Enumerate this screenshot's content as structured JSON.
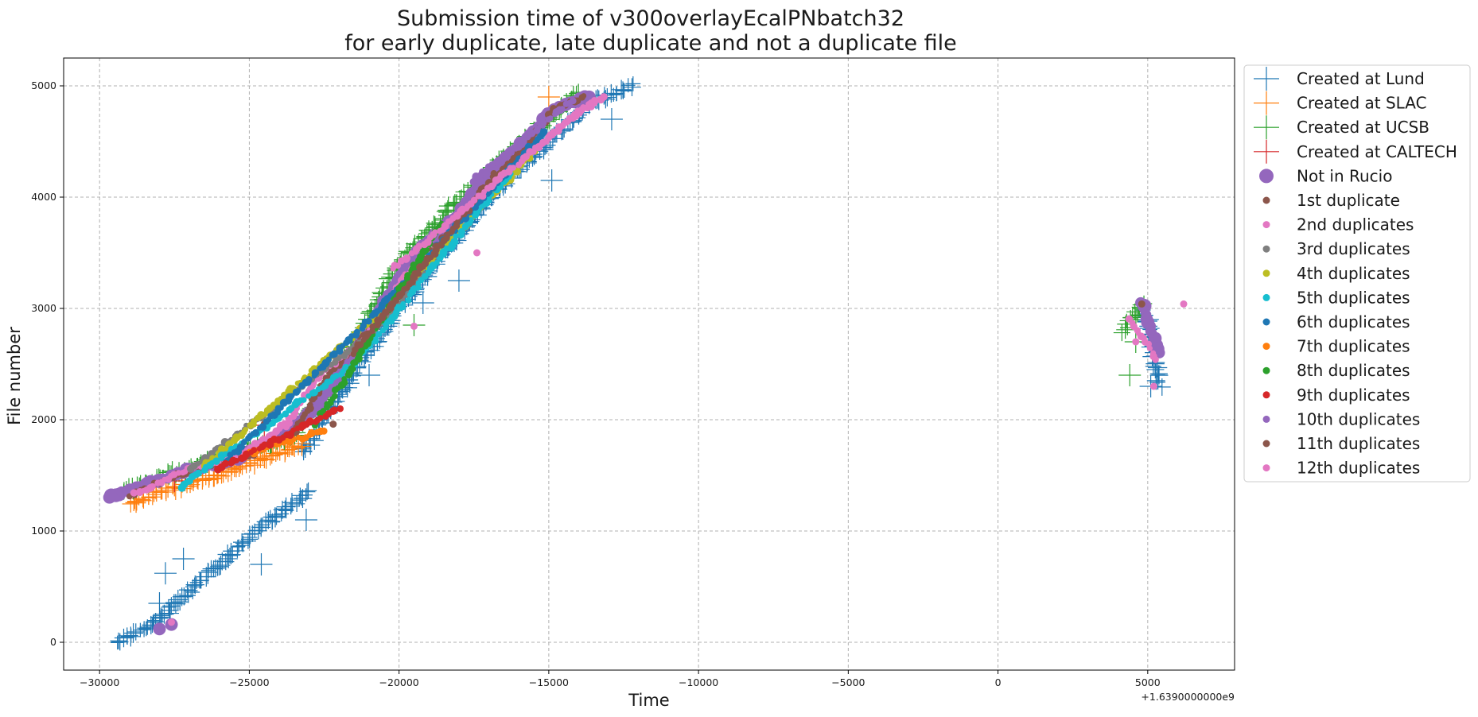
{
  "chart_data": {
    "type": "scatter",
    "title": "Submission time of v300overlayEcalPNbatch32",
    "subtitle": "for early duplicate, late duplicate and not a duplicate file",
    "xlabel": "Time",
    "ylabel": "File number",
    "x_offset_label": "+1.6390000000e9",
    "xlim": [
      -31200,
      7900
    ],
    "ylim": [
      -250,
      5250
    ],
    "xticks": [
      -30000,
      -25000,
      -20000,
      -15000,
      -10000,
      -5000,
      0,
      5000
    ],
    "xtick_labels": [
      "−30000",
      "−25000",
      "−20000",
      "−15000",
      "−10000",
      "−5000",
      "0",
      "5000"
    ],
    "yticks": [
      0,
      1000,
      2000,
      3000,
      4000,
      5000
    ],
    "ytick_labels": [
      "0",
      "1000",
      "2000",
      "3000",
      "4000",
      "5000"
    ],
    "grid": true,
    "legend_position": "outside-right",
    "series": [
      {
        "name": "Created at Lund",
        "marker": "plus",
        "color": "#1f77b4",
        "segments": [
          {
            "x": [
              -29400,
              -28300,
              -27000,
              -25600,
              -24300,
              -23000
            ],
            "y": [
              0,
              150,
              450,
              800,
              1100,
              1350
            ]
          },
          {
            "x": [
              -23200,
              -21800,
              -20000,
              -18200,
              -16600,
              -15000,
              -13600,
              -12200
            ],
            "y": [
              1700,
              2300,
              3000,
              3600,
              4100,
              4500,
              4850,
              5000
            ]
          },
          {
            "x": [
              4900,
              5400
            ],
            "y": [
              3000,
              2300
            ]
          }
        ],
        "outliers": [
          {
            "x": -27200,
            "y": 750
          },
          {
            "x": -27800,
            "y": 620
          },
          {
            "x": -24600,
            "y": 700
          },
          {
            "x": -28000,
            "y": 350
          },
          {
            "x": -23100,
            "y": 1100
          },
          {
            "x": -21000,
            "y": 2400
          },
          {
            "x": -19200,
            "y": 3050
          },
          {
            "x": -18000,
            "y": 3250
          },
          {
            "x": -14900,
            "y": 4150
          },
          {
            "x": -12900,
            "y": 4700
          },
          {
            "x": 5100,
            "y": 2300
          },
          {
            "x": 5000,
            "y": 2900
          }
        ]
      },
      {
        "name": "Created at SLAC",
        "marker": "plus",
        "color": "#ff7f0e",
        "segments": [
          {
            "x": [
              -29000,
              -27500,
              -26000,
              -24500,
              -23200
            ],
            "y": [
              1250,
              1380,
              1500,
              1650,
              1780
            ]
          }
        ],
        "outliers": [
          {
            "x": -15000,
            "y": 4900
          }
        ]
      },
      {
        "name": "Created at UCSB",
        "marker": "plus",
        "color": "#2ca02c",
        "segments": [
          {
            "x": [
              -29200,
              -27500,
              -25500,
              -23600,
              -22600,
              -21300,
              -20000,
              -18300,
              -16500,
              -15000,
              -14000
            ],
            "y": [
              1350,
              1520,
              1700,
              1850,
              2200,
              2750,
              3400,
              3900,
              4350,
              4700,
              4950
            ]
          },
          {
            "x": [
              4200,
              4800
            ],
            "y": [
              2800,
              3050
            ]
          }
        ],
        "outliers": [
          {
            "x": -19500,
            "y": 2850
          },
          {
            "x": 4400,
            "y": 2400
          },
          {
            "x": 4600,
            "y": 2700
          }
        ]
      },
      {
        "name": "Created at CALTECH",
        "marker": "plus",
        "color": "#d62728",
        "segments": [],
        "outliers": [
          {
            "x": -27500,
            "y": 1450
          },
          {
            "x": -24500,
            "y": 1950
          }
        ]
      },
      {
        "name": "Not in Rucio",
        "marker": "circle-large",
        "color": "#9467bd",
        "segments": [
          {
            "x": [
              -29700,
              -28500,
              -27000,
              -25400,
              -24000,
              -22800,
              -21600,
              -20500,
              -19400,
              -18200,
              -17000,
              -15800,
              -14800,
              -13700
            ],
            "y": [
              1300,
              1420,
              1550,
              1650,
              1850,
              2100,
              2550,
              3050,
              3500,
              3800,
              4200,
              4500,
              4800,
              4900
            ]
          },
          {
            "x": [
              4800,
              5400
            ],
            "y": [
              3050,
              2600
            ]
          }
        ],
        "outliers": [
          {
            "x": -28000,
            "y": 120
          },
          {
            "x": -27600,
            "y": 160
          }
        ]
      },
      {
        "name": "1st duplicate",
        "marker": "dot",
        "color": "#8c564b",
        "segments": [
          {
            "x": [
              -29000,
              -27000,
              -25000,
              -23500,
              -22200,
              -21000,
              -20000,
              -19000,
              -18000,
              -17000,
              -15800,
              -14800,
              -13800
            ],
            "y": [
              1320,
              1540,
              1680,
              1900,
              2450,
              2800,
              3150,
              3500,
              3750,
              4100,
              4450,
              4800,
              4900
            ]
          }
        ],
        "outliers": [
          {
            "x": -24500,
            "y": 1960
          },
          {
            "x": -22200,
            "y": 1960
          },
          {
            "x": 4800,
            "y": 3040
          }
        ]
      },
      {
        "name": "2nd duplicates",
        "marker": "dot",
        "color": "#e377c2",
        "segments": [
          {
            "x": [
              -28800,
              -27000,
              -25200,
              -23800,
              -22500,
              -21200,
              -19800,
              -18400,
              -17000,
              -15800,
              -14500,
              -13200
            ],
            "y": [
              1330,
              1560,
              1700,
              1950,
              2450,
              2700,
              3300,
              3600,
              4000,
              4350,
              4650,
              4900
            ]
          },
          {
            "x": [
              4400,
              5300
            ],
            "y": [
              2900,
              2550
            ]
          }
        ],
        "outliers": [
          {
            "x": -17400,
            "y": 3500
          },
          {
            "x": -19500,
            "y": 2840
          },
          {
            "x": -27600,
            "y": 180
          },
          {
            "x": 6200,
            "y": 3040
          },
          {
            "x": 5200,
            "y": 2300
          },
          {
            "x": 4600,
            "y": 2700
          }
        ]
      },
      {
        "name": "3rd duplicates",
        "marker": "dot",
        "color": "#7f7f7f",
        "segments": [
          {
            "x": [
              -27000,
              -21000,
              -16000
            ],
            "y": [
              1550,
              2750,
              4300
            ]
          }
        ],
        "outliers": []
      },
      {
        "name": "4th duplicates",
        "marker": "dot",
        "color": "#bcbd22",
        "segments": [
          {
            "x": [
              -26500,
              -20500,
              -15500
            ],
            "y": [
              1580,
              3000,
              4400
            ]
          }
        ],
        "outliers": []
      },
      {
        "name": "5th duplicates",
        "marker": "dot",
        "color": "#17becf",
        "segments": [
          {
            "x": [
              -27300,
              -21500,
              -16200
            ],
            "y": [
              1400,
              2500,
              4250
            ]
          }
        ],
        "outliers": []
      },
      {
        "name": "6th duplicates",
        "marker": "dot",
        "color": "#1f77b4",
        "segments": [
          {
            "x": [
              -25800,
              -20800,
              -15100
            ],
            "y": [
              1620,
              2950,
              4600
            ]
          }
        ],
        "outliers": []
      },
      {
        "name": "7th duplicates",
        "marker": "dot",
        "color": "#ff7f0e",
        "segments": [
          {
            "x": [
              -25000,
              -22500
            ],
            "y": [
              1700,
              1900
            ]
          }
        ],
        "outliers": []
      },
      {
        "name": "8th duplicates",
        "marker": "dot",
        "color": "#2ca02c",
        "segments": [
          {
            "x": [
              -22800,
              -18600
            ],
            "y": [
              1950,
              3750
            ]
          }
        ],
        "outliers": []
      },
      {
        "name": "9th duplicates",
        "marker": "dot",
        "color": "#d62728",
        "segments": [
          {
            "x": [
              -26000,
              -22000
            ],
            "y": [
              1560,
              2100
            ]
          }
        ],
        "outliers": []
      },
      {
        "name": "10th duplicates",
        "marker": "dot",
        "color": "#9467bd",
        "segments": [
          {
            "x": [
              -17500,
              -14200
            ],
            "y": [
              4150,
              4870
            ]
          }
        ],
        "outliers": []
      },
      {
        "name": "11th duplicates",
        "marker": "dot",
        "color": "#8c564b",
        "segments": [
          {
            "x": [
              -21500,
              -16800
            ],
            "y": [
              2600,
              4200
            ]
          }
        ],
        "outliers": []
      },
      {
        "name": "12th duplicates",
        "marker": "dot",
        "color": "#e377c2",
        "segments": [
          {
            "x": [
              -20200,
              -13500
            ],
            "y": [
              3350,
              4880
            ]
          }
        ],
        "outliers": []
      }
    ]
  }
}
